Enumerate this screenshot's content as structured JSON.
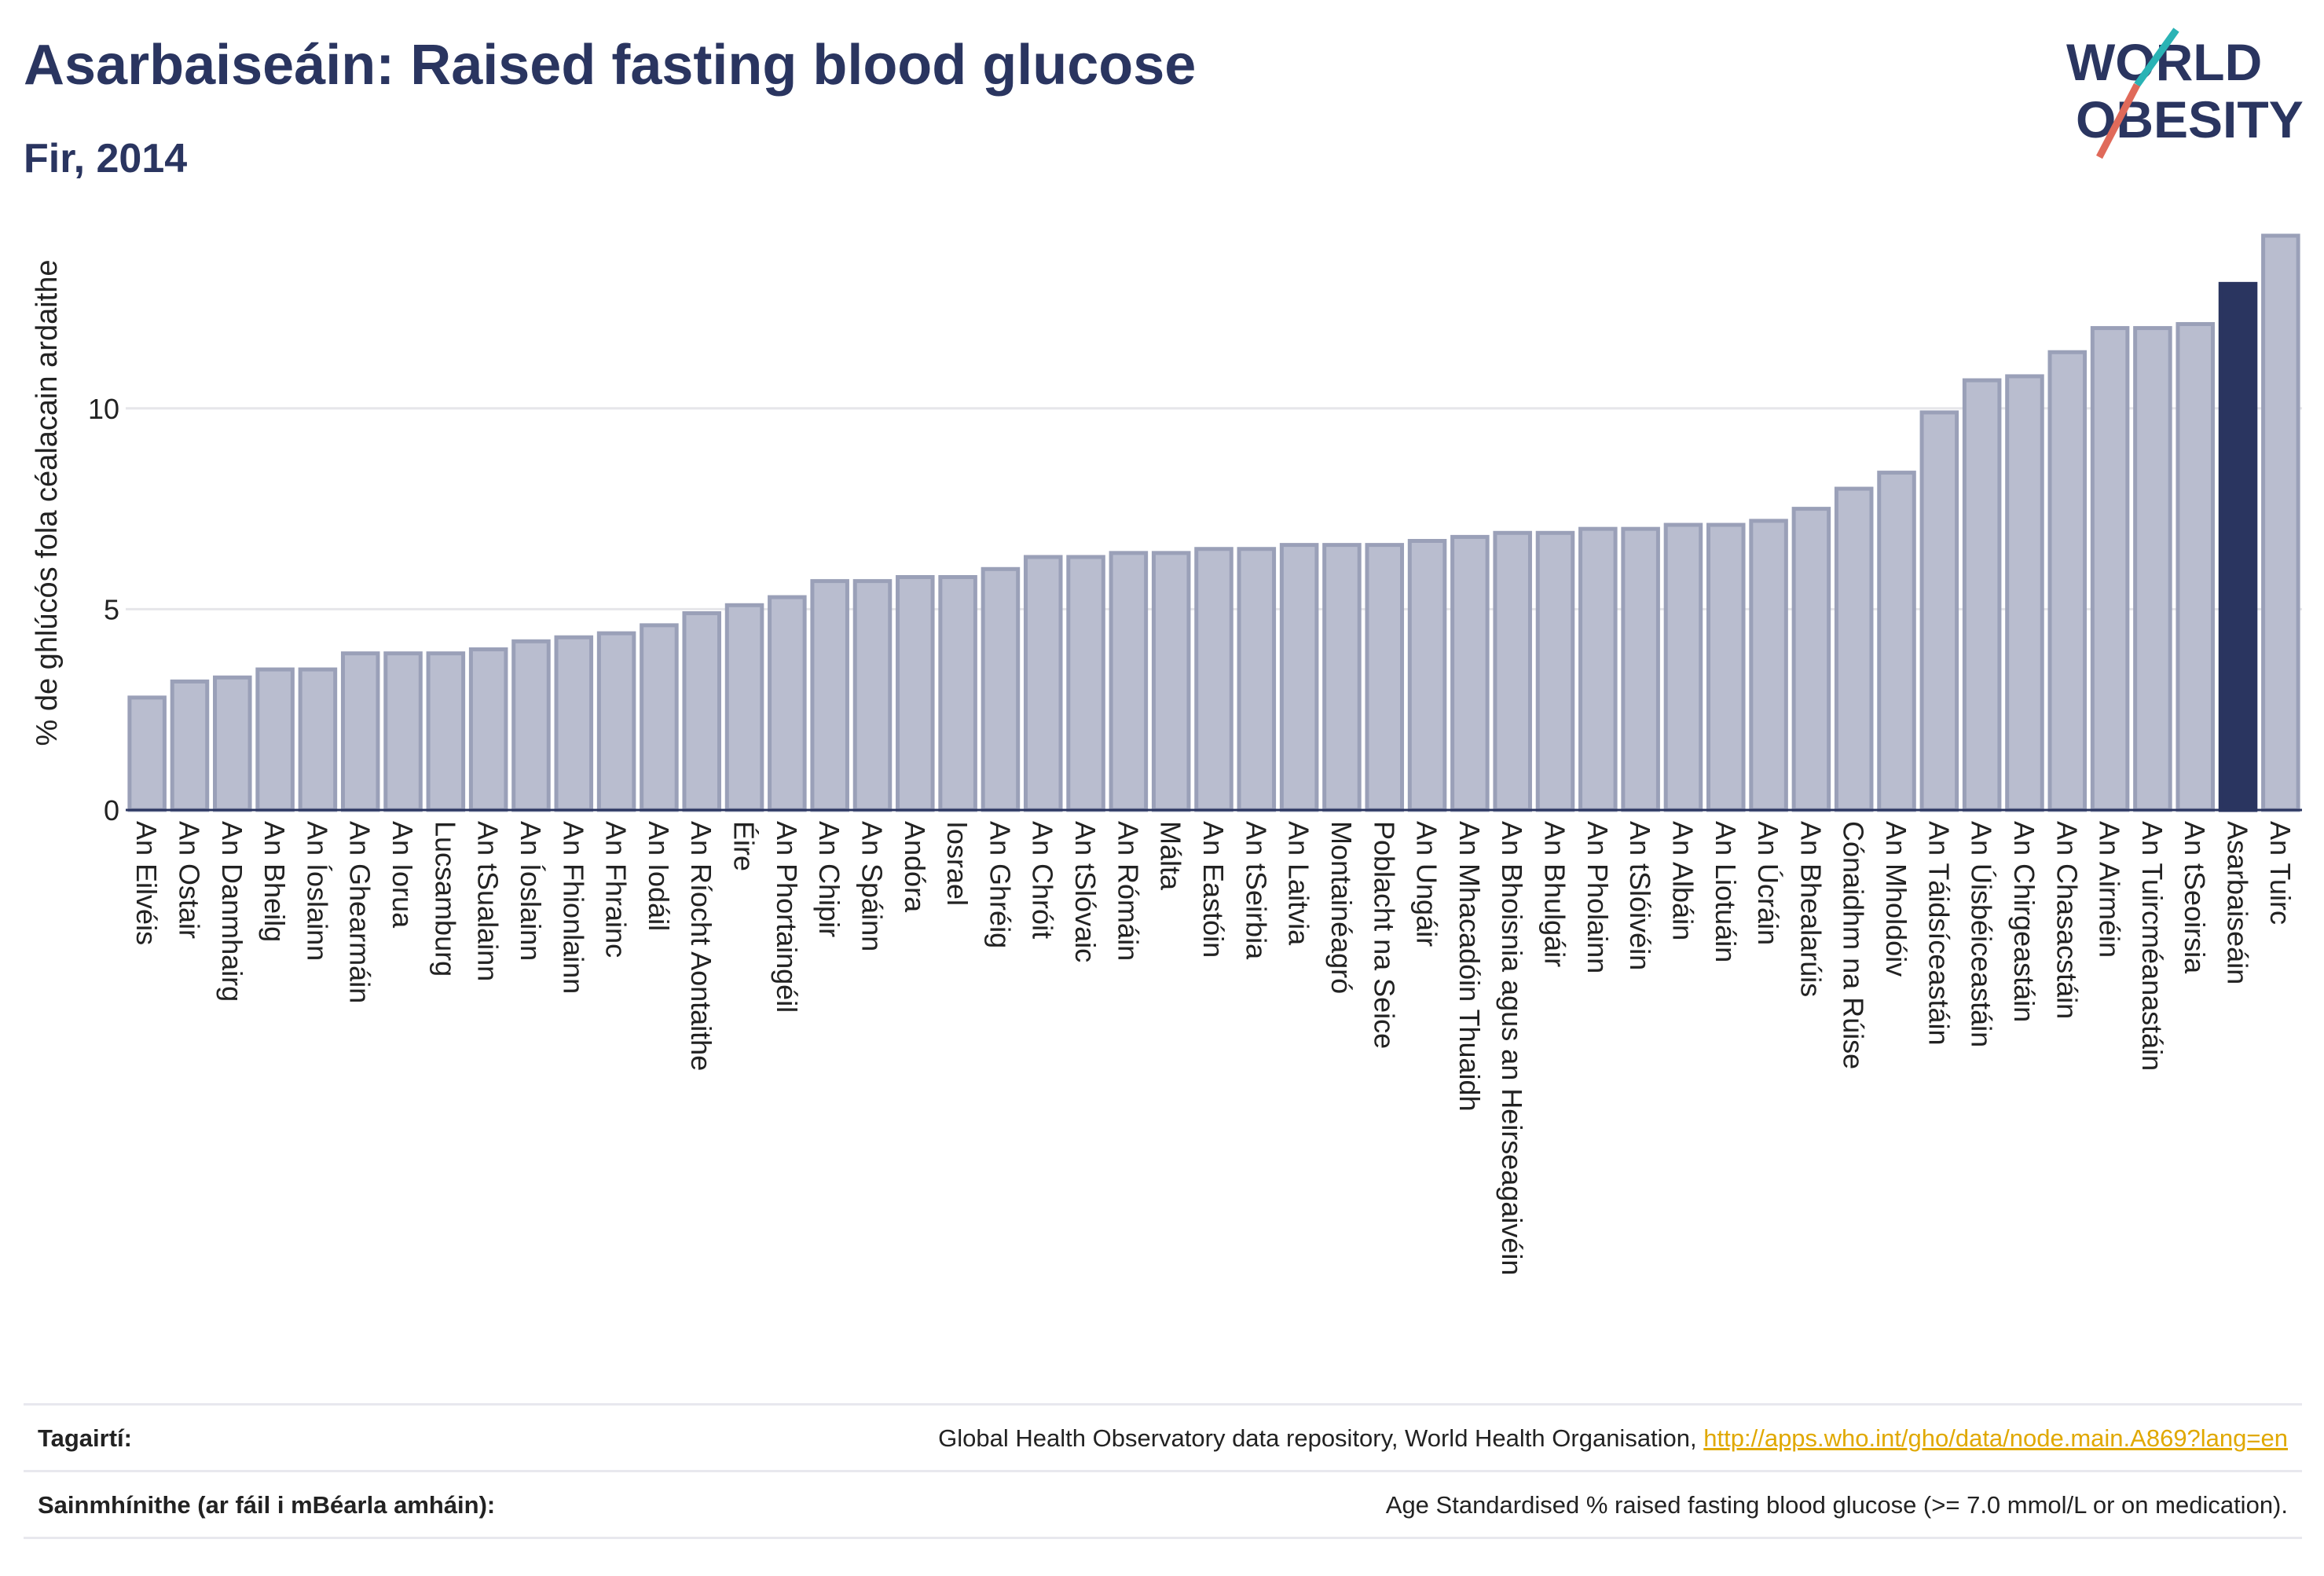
{
  "title": "Asarbaiseáin: Raised fasting blood glucose",
  "subtitle": "Fir, 2014",
  "logo": {
    "line1": "WORLD",
    "line2": "OBESITY"
  },
  "colors": {
    "highlight": "#2a3560",
    "bar_fill": "#b9bdcf",
    "bar_stroke": "#9aa0b8",
    "grid": "#e6e6ea",
    "text": "#2a3560"
  },
  "references": {
    "rows": [
      {
        "label": "Tagairtí:",
        "value": "Global Health Observatory data repository, World Health Organisation,",
        "link": "http://apps.who.int/gho/data/node.main.A869?lang=en"
      },
      {
        "label": "Sainmhínithe (ar fáil i mBéarla amháin):",
        "value": "Age Standardised % raised fasting blood glucose (>= 7.0 mmol/L or on medication).",
        "link": ""
      }
    ]
  },
  "chart_data": {
    "type": "bar",
    "ylabel": "% de ghlúcós fola céalacain ardaithe",
    "xlabel": "",
    "ylim": [
      0,
      14.3
    ],
    "yticks": [
      0,
      5,
      10
    ],
    "grid": true,
    "highlight": "Asarbaiseáin",
    "categories": [
      "An Eilvéis",
      "An Ostair",
      "An Danmhairg",
      "An Bheilg",
      "An Íoslainn",
      "An Ghearmáin",
      "An Iorua",
      "Lucsamburg",
      "An tSualainn",
      "An Íoslainn",
      "An Fhionlainn",
      "An Fhrainc",
      "An Iodáil",
      "An Ríocht Aontaithe",
      "Éire",
      "An Phortaingéil",
      "An Chipir",
      "An Spáinn",
      "Andóra",
      "Iosrael",
      "An Ghréig",
      "An Chróit",
      "An tSlóvaic",
      "An Rómáin",
      "Málta",
      "An Eastóin",
      "An tSeirbia",
      "An Laitvia",
      "Montainéagró",
      "Poblacht na Seice",
      "An Ungáir",
      "An Mhacadóin Thuaidh",
      "An Bhoisnia agus an Heirseagaivéin",
      "An Bhulgáir",
      "An Pholainn",
      "An tSlóivéin",
      "An Albáin",
      "An Liotuáin",
      "An Úcráin",
      "An Bhealarúis",
      "Cónaidhm na Rúise",
      "An Mholdóiv",
      "An Táidsíceastáin",
      "An Úisbéiceastáin",
      "An Chirgeastáin",
      "An Chasacstáin",
      "An Airméin",
      "An Tuircméanastáin",
      "An tSeoirsia",
      "Asarbaiseáin",
      "An Tuirc"
    ],
    "values": [
      2.8,
      3.2,
      3.3,
      3.5,
      3.5,
      3.9,
      3.9,
      3.9,
      4.0,
      4.2,
      4.3,
      4.4,
      4.6,
      4.9,
      5.1,
      5.3,
      5.7,
      5.7,
      5.8,
      5.8,
      6.0,
      6.3,
      6.3,
      6.4,
      6.4,
      6.5,
      6.5,
      6.6,
      6.6,
      6.6,
      6.7,
      6.8,
      6.9,
      6.9,
      7.0,
      7.0,
      7.1,
      7.1,
      7.2,
      7.5,
      8.0,
      8.4,
      9.9,
      10.7,
      10.8,
      11.4,
      12.0,
      12.0,
      12.1,
      13.1,
      14.3
    ]
  }
}
